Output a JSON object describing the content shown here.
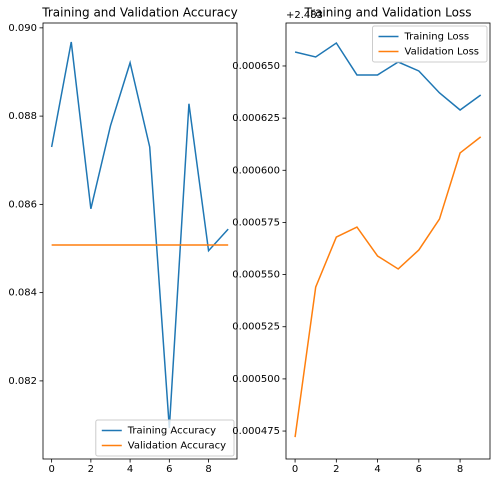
{
  "chart_data": [
    {
      "type": "line",
      "title": "Training and Validation Accuracy",
      "x": [
        0,
        1,
        2,
        3,
        4,
        5,
        6,
        7,
        8,
        9
      ],
      "series": [
        {
          "name": "Training Accuracy",
          "color": "#1f77b4",
          "values": [
            0.0873,
            0.08968,
            0.0859,
            0.08778,
            0.08921,
            0.0873,
            0.08093,
            0.08828,
            0.08495,
            0.08544
          ]
        },
        {
          "name": "Validation Accuracy",
          "color": "#ff7f0e",
          "values": [
            0.08508,
            0.08508,
            0.08508,
            0.08508,
            0.08508,
            0.08508,
            0.08508,
            0.08508,
            0.08508,
            0.08508
          ]
        }
      ],
      "xlim": [
        -0.44,
        9.45
      ],
      "xticks": [
        0,
        2,
        4,
        6,
        8
      ],
      "ylim": [
        0.08023,
        0.09011
      ],
      "yticks": [
        0.082,
        0.084,
        0.086,
        0.088,
        {
          "value": 0.09,
          "label": "0.090"
        }
      ],
      "legend": "lower right"
    },
    {
      "type": "line",
      "title": "Training and Validation Loss",
      "offset_label": "+2.483",
      "x": [
        0,
        1,
        2,
        3,
        4,
        5,
        6,
        7,
        8,
        9
      ],
      "series": [
        {
          "name": "Training Loss",
          "color": "#1f77b4",
          "values": [
            0.0006567,
            0.0006543,
            0.000661,
            0.0006457,
            0.0006457,
            0.0006519,
            0.0006476,
            0.0006371,
            0.0006289,
            0.0006361
          ]
        },
        {
          "name": "Validation Loss",
          "color": "#ff7f0e",
          "values": [
            0.0004721,
            0.000544,
            0.000568,
            0.0005728,
            0.0005589,
            0.0005527,
            0.0005618,
            0.0005766,
            0.0006083,
            0.000616
          ]
        }
      ],
      "xlim": [
        -0.44,
        9.45
      ],
      "xticks": [
        0,
        2,
        4,
        6,
        8
      ],
      "ylim": [
        0.0004616,
        0.0006706
      ],
      "yticks": [
        {
          "value": 0.000475,
          "label": "0.000475"
        },
        {
          "value": 0.0005,
          "label": "0.000500"
        },
        {
          "value": 0.000525,
          "label": "0.000525"
        },
        {
          "value": 0.00055,
          "label": "0.000550"
        },
        {
          "value": 0.000575,
          "label": "0.000575"
        },
        {
          "value": 0.0006,
          "label": "0.000600"
        },
        {
          "value": 0.000625,
          "label": "0.000625"
        },
        {
          "value": 0.00065,
          "label": "0.000650"
        }
      ],
      "legend": "upper right"
    }
  ]
}
